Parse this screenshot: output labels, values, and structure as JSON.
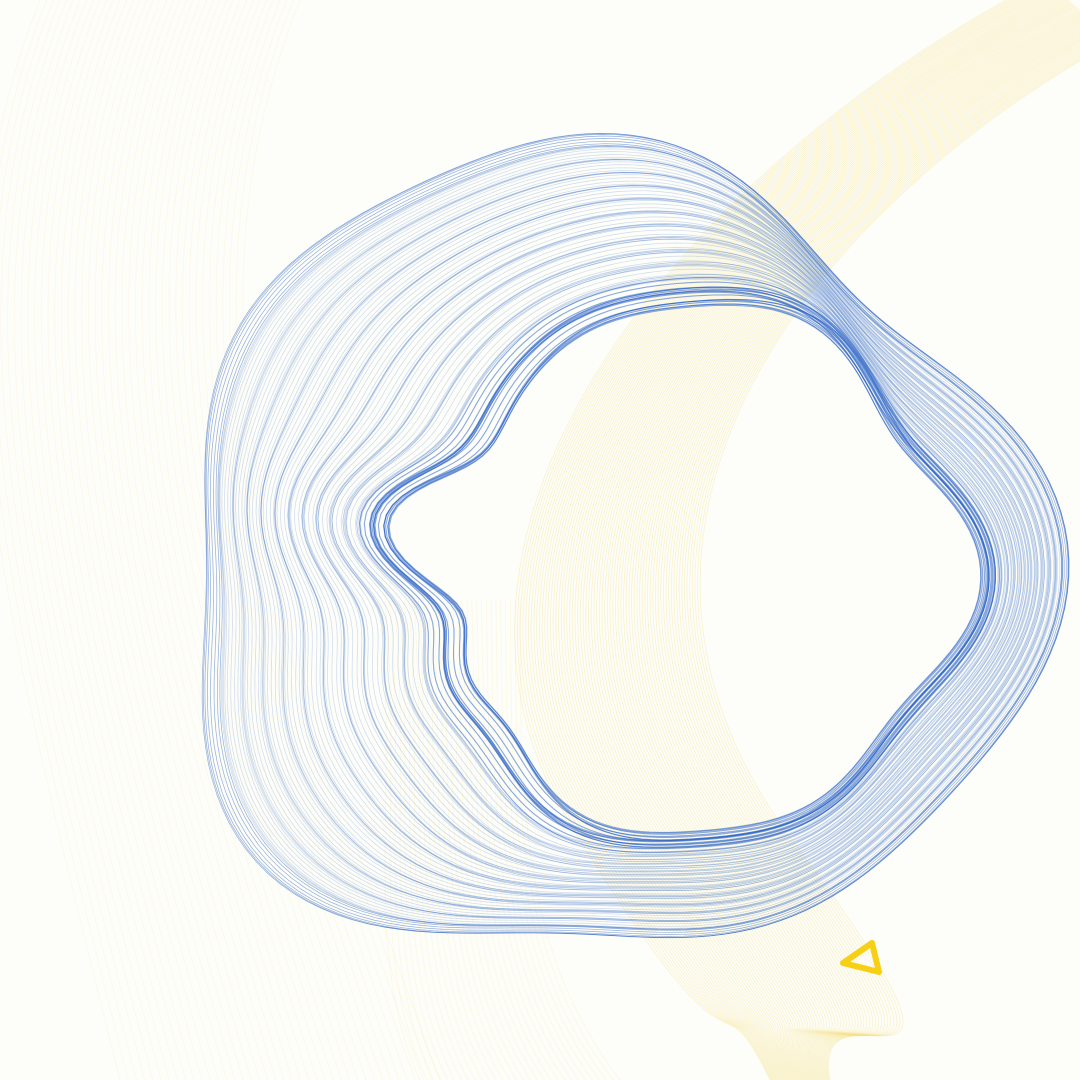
{
  "artwork": {
    "background_color": "#fdfdf9",
    "ring_color": "#2a62c6",
    "stream_color": "#f6d85a",
    "marker_color": "#f7cf14",
    "marker_icon": "triangle-icon"
  }
}
